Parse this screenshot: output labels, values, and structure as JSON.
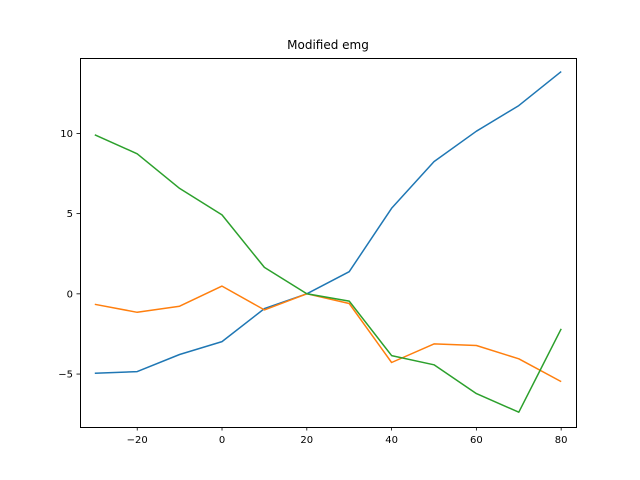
{
  "chart_data": {
    "type": "line",
    "title": "Modified emg",
    "xlabel": "",
    "ylabel": "",
    "xlim": [
      -33.5,
      83.5
    ],
    "ylim": [
      -8.3,
      14.7
    ],
    "xticks": [
      -20,
      0,
      20,
      40,
      60,
      80
    ],
    "yticks": [
      -5,
      0,
      5,
      10
    ],
    "grid": false,
    "legend": "none",
    "x": [
      -30,
      -20,
      -10,
      0,
      10,
      20,
      30,
      40,
      50,
      60,
      70,
      80
    ],
    "series": [
      {
        "color": "#1f77b4",
        "values": [
          -4.95,
          -4.85,
          -3.78,
          -2.98,
          -0.92,
          0.0,
          1.38,
          5.33,
          8.24,
          10.14,
          11.73,
          13.85
        ]
      },
      {
        "color": "#ff7f0e",
        "values": [
          -0.65,
          -1.15,
          -0.77,
          0.48,
          -1.0,
          0.0,
          -0.6,
          -4.28,
          -3.12,
          -3.22,
          -4.05,
          -5.47
        ]
      },
      {
        "color": "#2ca02c",
        "values": [
          9.91,
          8.73,
          6.57,
          4.92,
          1.65,
          0.0,
          -0.45,
          -3.85,
          -4.42,
          -6.22,
          -7.38,
          -2.18
        ]
      }
    ]
  }
}
